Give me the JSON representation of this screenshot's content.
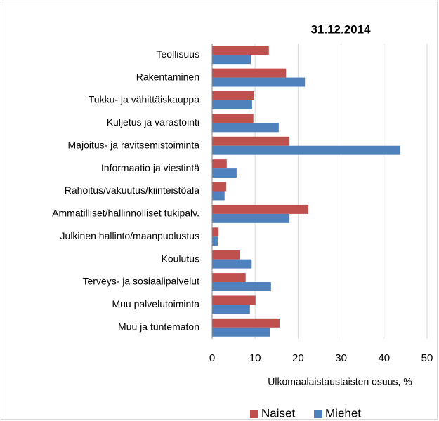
{
  "chart_data": {
    "type": "bar",
    "orientation": "horizontal",
    "title": "31.12.2014",
    "x_label": "Ulkomaalaistaustaisten osuus, %",
    "categories": [
      "Teollisuus",
      "Rakentaminen",
      "Tukku- ja vähittäiskauppa",
      "Kuljetus ja varastointi",
      "Majoitus- ja ravitsemistoiminta",
      "Informaatio ja viestintä",
      "Rahoitus/vakuutus/kiinteistöala",
      "Ammatilliset/hallinnolliset tukipalv.",
      "Julkinen hallinto/maanpuolustus",
      "Koulutus",
      "Terveys- ja sosiaalipalvelut",
      "Muu palvelutoiminta",
      "Muu ja tuntematon"
    ],
    "series": [
      {
        "name": "Naiset",
        "color": "#c0504d",
        "values": [
          13.2,
          17.2,
          9.8,
          9.6,
          18.0,
          3.4,
          3.3,
          22.4,
          1.5,
          6.4,
          7.8,
          10.1,
          15.7
        ]
      },
      {
        "name": "Miehet",
        "color": "#4f81bd",
        "values": [
          9.0,
          21.6,
          9.3,
          15.5,
          43.8,
          5.7,
          2.9,
          18.0,
          1.3,
          9.2,
          13.7,
          8.8,
          13.4
        ]
      }
    ],
    "xlim": [
      0,
      50
    ],
    "xticks": [
      0,
      10,
      20,
      30,
      40,
      50
    ],
    "grid": true,
    "legend": "bottom"
  }
}
